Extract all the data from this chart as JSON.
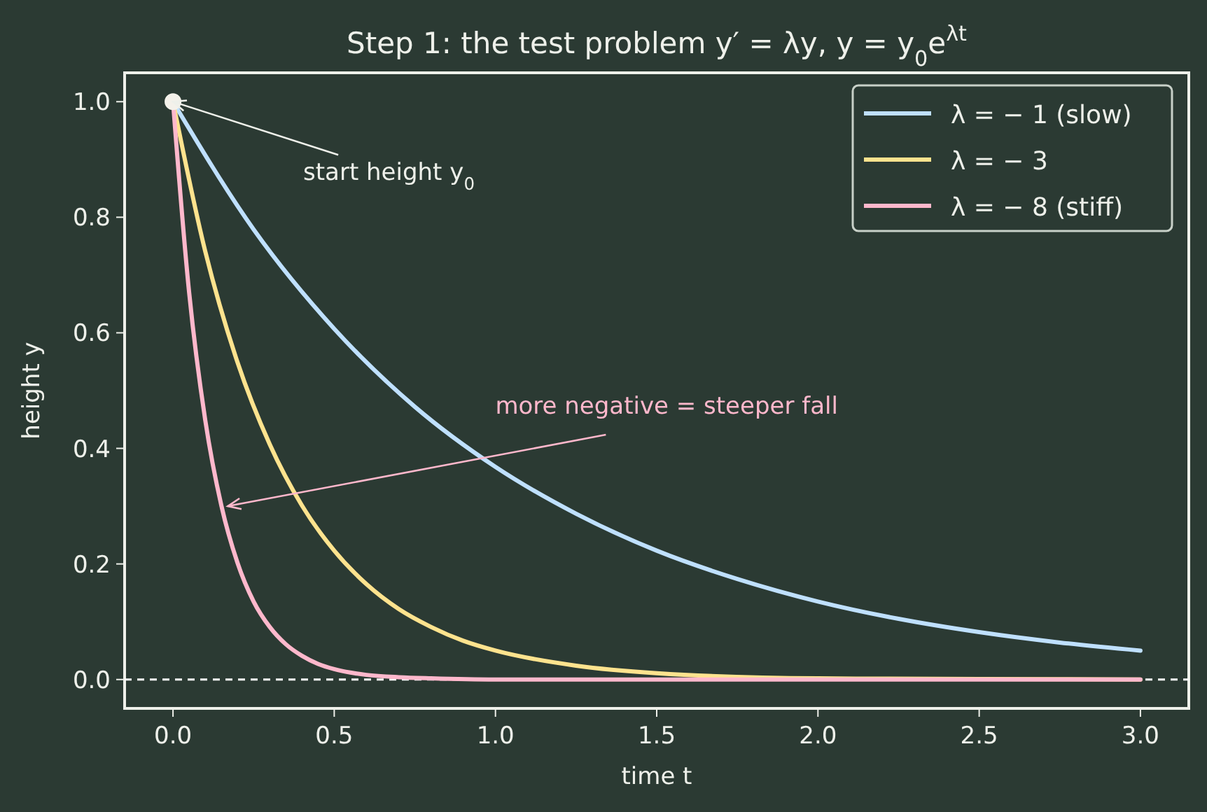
{
  "chart_data": {
    "type": "line",
    "title": "Step 1: the test problem  y′ = λy,  y = y$_{0}$e$^{λt}$",
    "xlabel": "time  t",
    "ylabel": "height  y",
    "xlim": [
      -0.15,
      3.15
    ],
    "ylim": [
      -0.05,
      1.05
    ],
    "xticks": [
      {
        "value": 0,
        "label": "0.0"
      },
      0.5,
      {
        "value": 1,
        "label": "1.0"
      },
      1.5,
      {
        "value": 2,
        "label": "2.0"
      },
      2.5,
      {
        "value": 3,
        "label": "3.0"
      }
    ],
    "yticks": [
      {
        "value": 0,
        "label": "0.0"
      },
      0.2,
      0.4,
      0.6,
      0.8,
      {
        "value": 1,
        "label": "1.0"
      }
    ],
    "grid": false,
    "legend": "top right",
    "line_style": "solid",
    "marker": "none",
    "series": [
      {
        "name": "λ = − 1 (slow)",
        "color": "#bfe0ff",
        "x": [
          0,
          0.25,
          0.5,
          0.75,
          1,
          1.25,
          1.5,
          1.75,
          2,
          2.25,
          2.5,
          2.75,
          3
        ],
        "values": [
          1,
          0.779,
          0.607,
          0.472,
          0.368,
          0.287,
          0.223,
          0.174,
          0.135,
          0.105,
          0.082,
          0.064,
          0.05
        ]
      },
      {
        "name": "λ = − 3",
        "color": "#ffe38e",
        "x": [
          0,
          0.1,
          0.2,
          0.3,
          0.4,
          0.5,
          0.6,
          0.7,
          0.8,
          0.9,
          1,
          1.25,
          1.5,
          2,
          2.5,
          3
        ],
        "values": [
          1,
          0.741,
          0.549,
          0.407,
          0.301,
          0.223,
          0.165,
          0.122,
          0.091,
          0.067,
          0.05,
          0.024,
          0.011,
          0.002,
          0.001,
          0
        ]
      },
      {
        "name": "λ = − 8 (stiff)",
        "color": "#ffb8cc",
        "x": [
          0,
          0.05,
          0.1,
          0.15,
          0.2,
          0.25,
          0.3,
          0.35,
          0.4,
          0.45,
          0.5,
          0.55,
          0.6,
          0.7,
          0.8,
          1,
          1.5,
          2,
          3
        ],
        "values": [
          1,
          0.67,
          0.449,
          0.301,
          0.202,
          0.135,
          0.091,
          0.061,
          0.041,
          0.027,
          0.018,
          0.012,
          0.008,
          0.004,
          0.002,
          0,
          0,
          0,
          0
        ]
      },
      {
        "type": "scatter",
        "marker": "circle",
        "color": "#f4f1ea",
        "x": [
          0
        ],
        "values": [
          1
        ]
      }
    ],
    "ref_lines": [
      {
        "axis": "y",
        "value": 0,
        "color": "#ffffff",
        "line_style": "dashed"
      }
    ],
    "annotations": [
      {
        "text": "start height y$_{0}$",
        "x": 0,
        "y": 1
      },
      {
        "text": "more negative = steeper fall",
        "x": 0.17,
        "y": 0.3
      }
    ]
  }
}
